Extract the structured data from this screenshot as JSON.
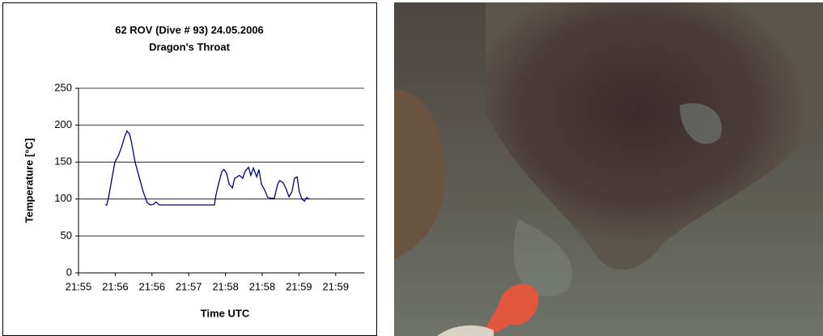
{
  "chart_data": {
    "type": "line",
    "title": "62 ROV (Dive # 93) 24.05.2006",
    "subtitle": "Dragon's Throat",
    "y_label": "Temperature  [°C]",
    "x_label": "Time UTC",
    "ylim": [
      0,
      250
    ],
    "yticks": [
      0,
      50,
      100,
      150,
      200,
      250
    ],
    "grid": true,
    "xlim": [
      0,
      8
    ],
    "xticks": [
      {
        "value": 0,
        "label": "21:55"
      },
      {
        "value": 1,
        "label": "21:56"
      },
      {
        "value": 2,
        "label": "21:56"
      },
      {
        "value": 3,
        "label": "21:57"
      },
      {
        "value": 4,
        "label": "21:58"
      },
      {
        "value": 5,
        "label": "21:58"
      },
      {
        "value": 6,
        "label": "21:59"
      },
      {
        "value": 7,
        "label": "21:59"
      }
    ],
    "x": [
      0.73,
      0.77,
      0.81,
      0.9,
      0.99,
      1.08,
      1.17,
      1.26,
      1.32,
      1.39,
      1.45,
      1.54,
      1.65,
      1.76,
      1.87,
      1.96,
      2.05,
      2.11,
      2.2,
      2.49,
      3.15,
      3.7,
      3.74,
      3.81,
      3.9,
      3.96,
      4.03,
      4.1,
      4.19,
      4.25,
      4.32,
      4.38,
      4.47,
      4.54,
      4.63,
      4.69,
      4.76,
      4.85,
      4.91,
      4.98,
      5.07,
      5.15,
      5.24,
      5.33,
      5.42,
      5.48,
      5.57,
      5.64,
      5.73,
      5.81,
      5.88,
      5.95,
      6.01,
      6.08,
      6.15,
      6.21,
      6.28
    ],
    "series": [
      {
        "color": "#000080",
        "values": [
          92,
          92,
          100,
          125,
          150,
          158,
          170,
          185,
          192,
          188,
          175,
          150,
          130,
          110,
          95,
          92,
          93,
          96,
          92,
          92,
          92,
          92,
          105,
          120,
          137,
          140,
          135,
          120,
          115,
          128,
          130,
          132,
          128,
          138,
          143,
          132,
          142,
          130,
          140,
          120,
          112,
          102,
          101,
          101,
          120,
          125,
          122,
          115,
          103,
          110,
          128,
          130,
          110,
          100,
          97,
          102,
          100
        ]
      }
    ]
  }
}
